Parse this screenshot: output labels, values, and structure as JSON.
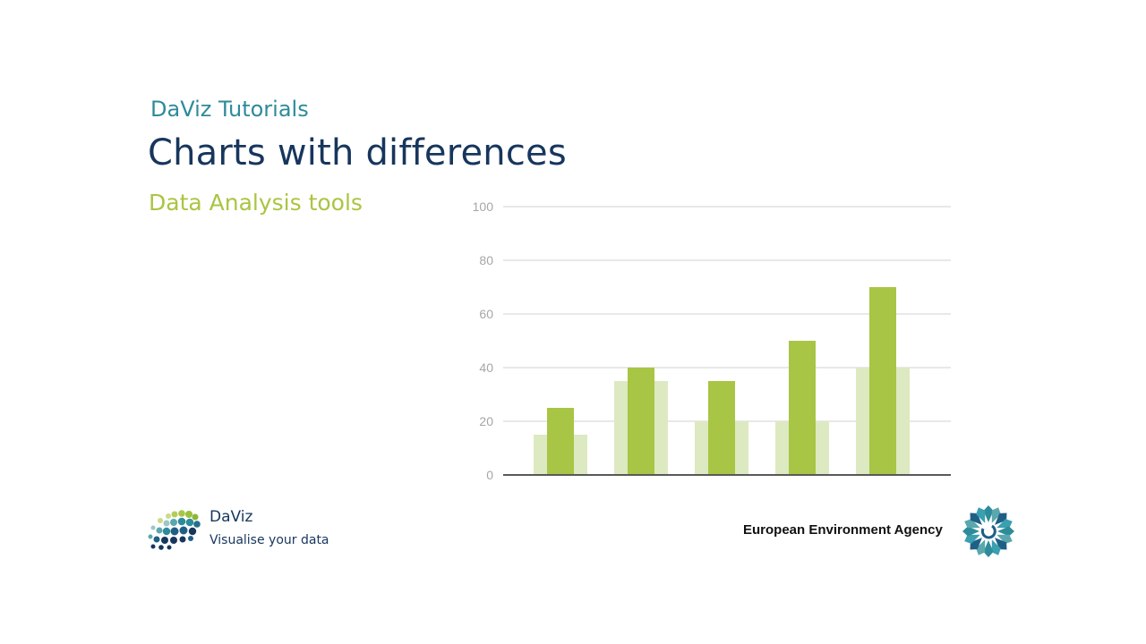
{
  "slide": {
    "kicker": "DaViz Tutorials",
    "title": "Charts with differences",
    "subtitle": "Data Analysis tools"
  },
  "chart_data": {
    "type": "bar",
    "categories": [
      "",
      "",
      "",
      "",
      ""
    ],
    "series": [
      {
        "values": [
          15,
          35,
          20,
          20,
          40
        ],
        "color": "#dde9c1"
      },
      {
        "values": [
          25,
          40,
          35,
          50,
          70
        ],
        "color": "#a8c545"
      }
    ],
    "y_ticks": [
      0,
      20,
      40,
      60,
      80,
      100
    ],
    "ylim": [
      0,
      100
    ],
    "grid": true,
    "axis_color": "#595959",
    "grid_color": "#d9d9d9"
  },
  "daviz_logo": {
    "name": "DaViz",
    "tagline": "Visualise your data",
    "icon": "daviz-dots-logo"
  },
  "eea_logo": {
    "name": "European Environment Agency",
    "icon": "eea-sun-logo"
  },
  "colors": {
    "title": "#17365d",
    "kicker": "#2e8b9a",
    "subtitle": "#a9c542"
  }
}
